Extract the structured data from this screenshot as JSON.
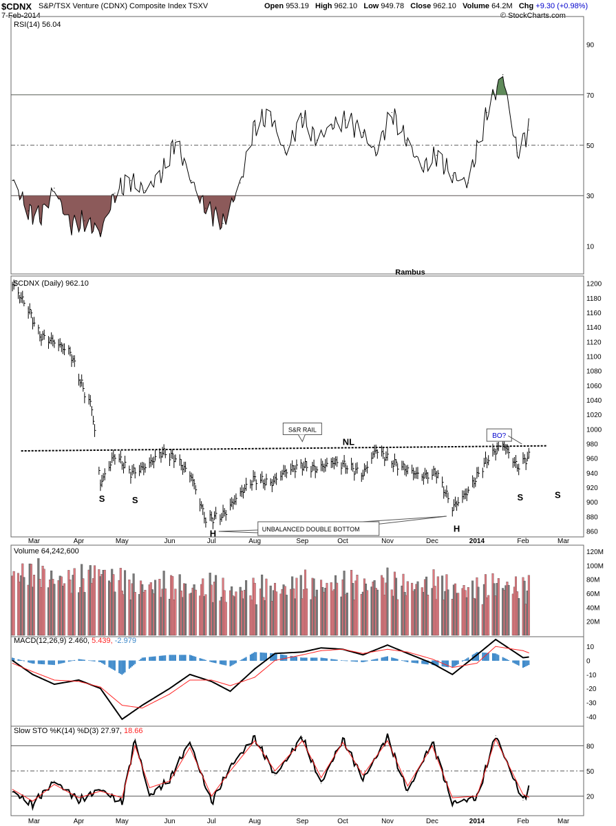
{
  "header": {
    "symbol": "$CDNX",
    "name": "S&P/TSX Venture (CDNX) Composite Index  TSXV",
    "date": "7-Feb-2014",
    "open_label": "Open",
    "open": "953.19",
    "high_label": "High",
    "high": "962.10",
    "low_label": "Low",
    "low": "949.78",
    "close_label": "Close",
    "close": "962.10",
    "volume_label": "Volume",
    "volume": "64.2M",
    "chg_label": "Chg",
    "chg": "+9.30 (+0.98%)",
    "credit": "© StockCharts.com"
  },
  "months": [
    "Mar",
    "Apr",
    "May",
    "Jun",
    "Jul",
    "Aug",
    "Sep",
    "Oct",
    "Nov",
    "Dec",
    "2014",
    "Feb",
    "Mar"
  ],
  "chart_data": [
    {
      "type": "line",
      "panel": "RSI",
      "label": "RSI(14) 56.04",
      "yticks": [
        90,
        70,
        50,
        30,
        10
      ],
      "ylim": [
        0,
        100
      ],
      "reference_lines": [
        70,
        50,
        30
      ],
      "fill_above": 70,
      "fill_below": 30,
      "fill_above_color": "#5f8a5a",
      "fill_below_color": "#8c5a5a",
      "annotation": "Rambus",
      "x": [
        "2013-02-14",
        "2013-02-25",
        "2013-03-05",
        "2013-03-15",
        "2013-03-26",
        "2013-04-05",
        "2013-04-16",
        "2013-04-26",
        "2013-05-07",
        "2013-05-17",
        "2013-05-29",
        "2013-06-07",
        "2013-06-18",
        "2013-06-28",
        "2013-07-10",
        "2013-07-22",
        "2013-08-01",
        "2013-08-12",
        "2013-08-22",
        "2013-09-03",
        "2013-09-13",
        "2013-09-24",
        "2013-10-03",
        "2013-10-15",
        "2013-10-24",
        "2013-11-04",
        "2013-11-14",
        "2013-11-25",
        "2013-12-05",
        "2013-12-16",
        "2013-12-27",
        "2014-01-09",
        "2014-01-20",
        "2014-01-30",
        "2014-02-07"
      ],
      "values": [
        36,
        24,
        21,
        33,
        18,
        20,
        15,
        31,
        36,
        32,
        39,
        52,
        36,
        25,
        19,
        35,
        58,
        62,
        47,
        61,
        52,
        58,
        60,
        55,
        47,
        63,
        52,
        41,
        46,
        38,
        35,
        63,
        78,
        47,
        56
      ]
    },
    {
      "type": "bar",
      "panel": "price",
      "label": "$CDNX (Daily) 962.10",
      "yticks": [
        1200,
        1180,
        1160,
        1140,
        1120,
        1100,
        1080,
        1060,
        1040,
        1020,
        1000,
        980,
        960,
        940,
        920,
        900,
        880,
        860
      ],
      "ylim": [
        852,
        1210
      ],
      "x": [
        "2013-02-14",
        "2013-02-25",
        "2013-03-05",
        "2013-03-15",
        "2013-03-26",
        "2013-04-05",
        "2013-04-10",
        "2013-04-16",
        "2013-04-26",
        "2013-05-07",
        "2013-05-17",
        "2013-05-29",
        "2013-06-07",
        "2013-06-18",
        "2013-06-28",
        "2013-07-10",
        "2013-07-22",
        "2013-08-01",
        "2013-08-12",
        "2013-08-22",
        "2013-09-03",
        "2013-09-13",
        "2013-09-24",
        "2013-10-03",
        "2013-10-15",
        "2013-10-24",
        "2013-11-04",
        "2013-11-14",
        "2013-11-25",
        "2013-12-05",
        "2013-12-16",
        "2013-12-27",
        "2014-01-09",
        "2014-01-20",
        "2014-01-30",
        "2014-02-07"
      ],
      "values": [
        1198,
        1165,
        1128,
        1120,
        1105,
        1050,
        1030,
        925,
        965,
        940,
        948,
        968,
        960,
        935,
        875,
        882,
        912,
        932,
        925,
        942,
        950,
        945,
        955,
        950,
        938,
        972,
        955,
        945,
        935,
        940,
        892,
        915,
        958,
        980,
        948,
        962
      ],
      "annotations": [
        {
          "text": "S",
          "x": "2013-04-17",
          "y": 905
        },
        {
          "text": "S",
          "x": "2013-05-10",
          "y": 903
        },
        {
          "text": "H",
          "x": "2013-07-03",
          "y": 857
        },
        {
          "text": "NL",
          "x": "2013-10-05",
          "y": 983
        },
        {
          "text": "H",
          "x": "2013-12-19",
          "y": 864
        },
        {
          "text": "S",
          "x": "2014-02-01",
          "y": 907
        },
        {
          "text": "S",
          "x": "2014-02-27",
          "y": 910
        },
        {
          "text": "S&R RAIL",
          "x": "2013-09-03",
          "y": 997
        },
        {
          "text": "UNBALANCED DOUBLE BOTTOM",
          "x": "2013-08-28",
          "y": 869
        },
        {
          "text": "BO?",
          "x": "2014-01-16",
          "y": 987
        }
      ],
      "neckline": {
        "from_x": "2013-02-20",
        "from_y": 970,
        "to_x": "2014-02-20",
        "to_y": 977
      }
    },
    {
      "type": "bar",
      "panel": "volume",
      "label": "Volume 64,242,600",
      "yticks": [
        "120M",
        "100M",
        "80M",
        "60M",
        "40M",
        "20M"
      ],
      "ylim": [
        0,
        125
      ],
      "up_color": "#e07a80",
      "down_color": "#7a7a7a",
      "x": [
        "2013-02-14",
        "2013-03-01",
        "2013-03-15",
        "2013-04-01",
        "2013-04-15",
        "2013-05-01",
        "2013-05-15",
        "2013-06-03",
        "2013-06-17",
        "2013-07-02",
        "2013-07-15",
        "2013-08-01",
        "2013-08-15",
        "2013-09-03",
        "2013-09-16",
        "2013-10-01",
        "2013-10-15",
        "2013-11-01",
        "2013-11-15",
        "2013-12-02",
        "2013-12-16",
        "2014-01-02",
        "2014-01-15",
        "2014-02-03",
        "2014-02-07"
      ],
      "values": [
        85,
        90,
        80,
        78,
        92,
        75,
        68,
        72,
        65,
        70,
        60,
        66,
        64,
        72,
        68,
        74,
        70,
        76,
        68,
        74,
        66,
        64,
        72,
        68,
        64
      ]
    },
    {
      "type": "line",
      "panel": "MACD",
      "label": "MACD(12,26,9)",
      "macd": "2.460",
      "signal": "5.439",
      "histogram": "-2.979",
      "yticks": [
        10,
        0,
        -10,
        -20,
        -30,
        -40
      ],
      "ylim": [
        -45,
        15
      ],
      "signal_color": "#ff2222",
      "histogram_color": "#3a87c9",
      "x": [
        "2013-02-14",
        "2013-02-28",
        "2013-03-15",
        "2013-04-01",
        "2013-04-16",
        "2013-05-01",
        "2013-05-15",
        "2013-06-03",
        "2013-06-17",
        "2013-07-02",
        "2013-07-15",
        "2013-08-01",
        "2013-08-15",
        "2013-09-03",
        "2013-09-16",
        "2013-10-01",
        "2013-10-15",
        "2013-11-01",
        "2013-11-15",
        "2013-12-02",
        "2013-12-16",
        "2014-01-02",
        "2014-01-15",
        "2014-02-03",
        "2014-02-07"
      ],
      "series": [
        {
          "values": [
            0,
            -10,
            -17,
            -14,
            -20,
            -42,
            -32,
            -20,
            -10,
            -15,
            -22,
            -6,
            5,
            6,
            9,
            8,
            4,
            11,
            5,
            -2,
            -10,
            4,
            15,
            2,
            2.46
          ]
        },
        {
          "values": [
            -2,
            -8,
            -14,
            -15,
            -19,
            -32,
            -34,
            -24,
            -14,
            -14,
            -18,
            -12,
            0,
            4,
            7,
            8,
            5,
            8,
            6,
            1,
            -5,
            -2,
            10,
            7,
            5.44
          ]
        }
      ]
    },
    {
      "type": "line",
      "panel": "Slow STO",
      "label": "Slow STO %K(14) %D(3)",
      "k": "27.97",
      "d": "18.66",
      "yticks": [
        80,
        50,
        20
      ],
      "ylim": [
        0,
        100
      ],
      "reference_lines": [
        80,
        50,
        20
      ],
      "d_color": "#ff2222",
      "x": [
        "2013-02-14",
        "2013-02-28",
        "2013-03-15",
        "2013-04-01",
        "2013-04-16",
        "2013-05-01",
        "2013-05-10",
        "2013-05-20",
        "2013-06-03",
        "2013-06-17",
        "2013-07-02",
        "2013-07-15",
        "2013-08-01",
        "2013-08-15",
        "2013-09-03",
        "2013-09-16",
        "2013-10-01",
        "2013-10-15",
        "2013-11-01",
        "2013-11-15",
        "2013-12-02",
        "2013-12-16",
        "2014-01-02",
        "2014-01-15",
        "2014-02-03",
        "2014-02-07"
      ],
      "series": [
        {
          "values": [
            25,
            10,
            38,
            15,
            28,
            12,
            88,
            20,
            40,
            85,
            12,
            55,
            90,
            45,
            90,
            35,
            88,
            40,
            90,
            25,
            85,
            12,
            18,
            92,
            15,
            28
          ]
        },
        {
          "values": [
            28,
            14,
            34,
            18,
            26,
            18,
            80,
            30,
            38,
            78,
            20,
            50,
            86,
            50,
            86,
            42,
            84,
            45,
            86,
            32,
            80,
            18,
            20,
            88,
            22,
            18.66
          ]
        }
      ]
    }
  ]
}
